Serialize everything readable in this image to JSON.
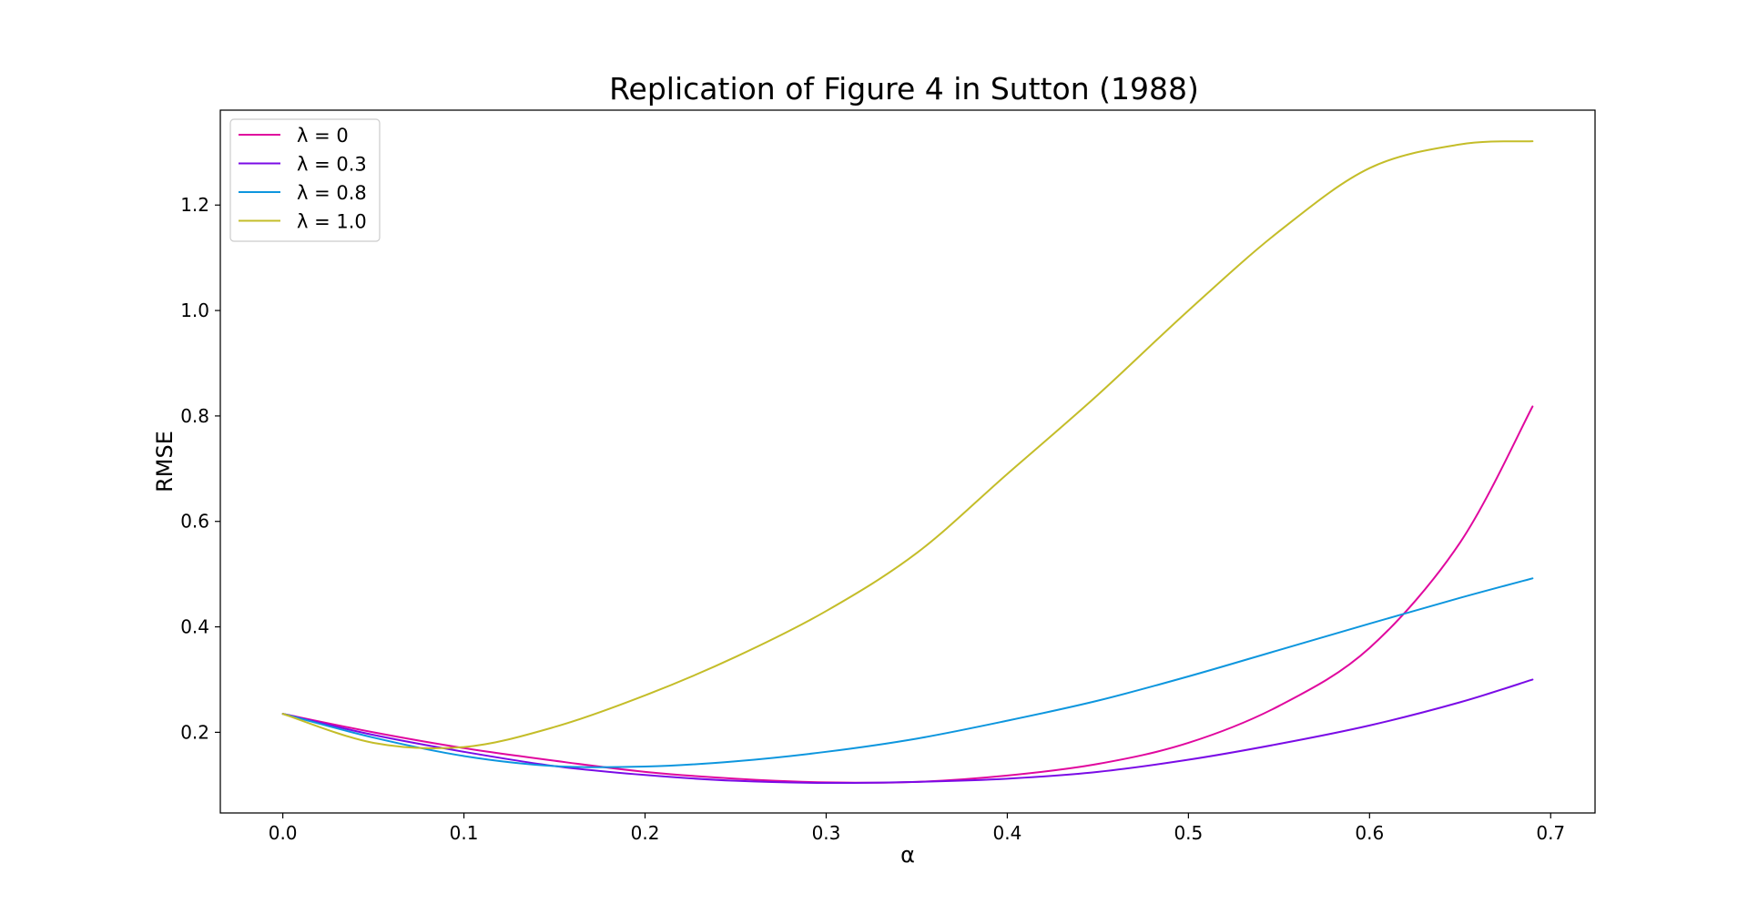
{
  "chart_data": {
    "type": "line",
    "title": "Replication of Figure 4 in Sutton (1988)",
    "xlabel": "α",
    "ylabel": "RMSE",
    "xlim": [
      -0.0345,
      0.7245
    ],
    "ylim": [
      0.047,
      1.38
    ],
    "xticks": [
      "0.0",
      "0.1",
      "0.2",
      "0.3",
      "0.4",
      "0.5",
      "0.6",
      "0.7"
    ],
    "yticks": [
      "0.2",
      "0.4",
      "0.6",
      "0.8",
      "1.0",
      "1.2"
    ],
    "grid": false,
    "legend_position": "upper-left",
    "x": [
      0.0,
      0.05,
      0.1,
      0.15,
      0.2,
      0.25,
      0.3,
      0.35,
      0.4,
      0.45,
      0.5,
      0.55,
      0.6,
      0.65,
      0.69
    ],
    "series": [
      {
        "name": "λ = 0",
        "color": "#e0089e",
        "values": [
          0.235,
          0.2,
          0.17,
          0.146,
          0.125,
          0.112,
          0.105,
          0.106,
          0.118,
          0.14,
          0.18,
          0.25,
          0.36,
          0.56,
          0.818
        ]
      },
      {
        "name": "λ = 0.3",
        "color": "#7a0be6",
        "values": [
          0.235,
          0.195,
          0.163,
          0.136,
          0.119,
          0.108,
          0.104,
          0.106,
          0.112,
          0.125,
          0.148,
          0.178,
          0.213,
          0.257,
          0.3
        ]
      },
      {
        "name": "λ = 0.8",
        "color": "#0d96de",
        "values": [
          0.235,
          0.19,
          0.155,
          0.136,
          0.135,
          0.145,
          0.163,
          0.188,
          0.222,
          0.26,
          0.306,
          0.356,
          0.406,
          0.455,
          0.492
        ]
      },
      {
        "name": "λ = 1.0",
        "color": "#c4bd29",
        "values": [
          0.235,
          0.18,
          0.172,
          0.21,
          0.27,
          0.343,
          0.43,
          0.54,
          0.69,
          0.84,
          1.0,
          1.15,
          1.27,
          1.315,
          1.321
        ]
      }
    ]
  }
}
